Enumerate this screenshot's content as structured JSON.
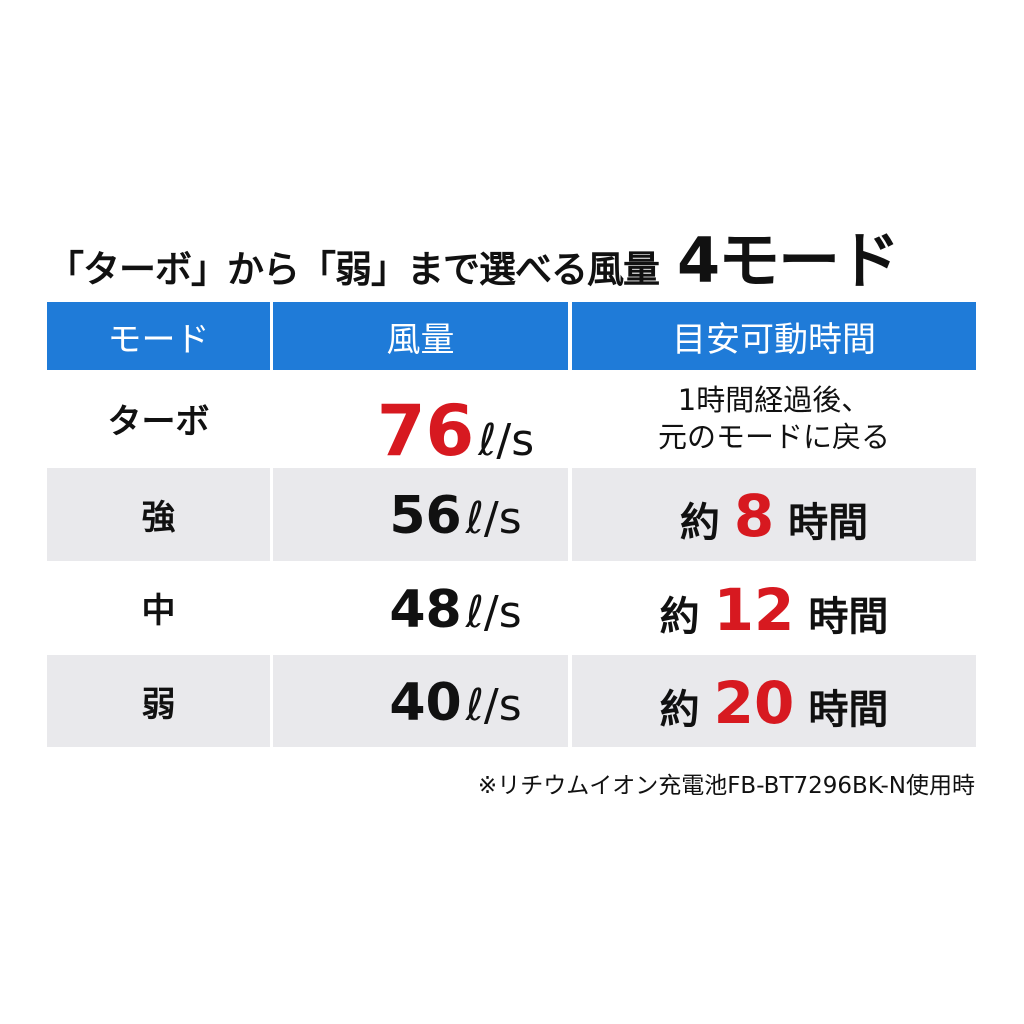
{
  "header": {
    "title": "「ターボ」から「弱」まで選べる風量",
    "title_emphasis": "4モード"
  },
  "table": {
    "columns": [
      "モード",
      "風量",
      "目安可動時間"
    ],
    "rows": [
      {
        "mode": "ターボ",
        "airflow": 76,
        "unit": "ℓ/s",
        "airflow_highlight": true,
        "note": [
          "1時間経過後、",
          "元のモードに戻る"
        ]
      },
      {
        "mode": "強",
        "airflow": 56,
        "unit": "ℓ/s",
        "time_prefix": "約",
        "hours": 8,
        "time_suffix": "時間"
      },
      {
        "mode": "中",
        "airflow": 48,
        "unit": "ℓ/s",
        "time_prefix": "約",
        "hours": 12,
        "time_suffix": "時間"
      },
      {
        "mode": "弱",
        "airflow": 40,
        "unit": "ℓ/s",
        "time_prefix": "約",
        "hours": 20,
        "time_suffix": "時間"
      }
    ]
  },
  "footnote": "※リチウムイオン充電池FB-BT7296BK-N使用時"
}
